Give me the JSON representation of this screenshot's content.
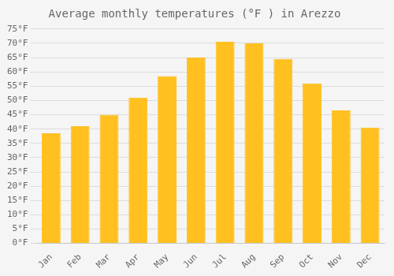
{
  "chart_data": {
    "type": "bar",
    "title": "Average monthly temperatures (°F ) in Arezzo",
    "categories": [
      "Jan",
      "Feb",
      "Mar",
      "Apr",
      "May",
      "Jun",
      "Jul",
      "Aug",
      "Sep",
      "Oct",
      "Nov",
      "Dec"
    ],
    "values": [
      38.5,
      41.0,
      45.0,
      51.0,
      58.5,
      65.0,
      70.5,
      70.0,
      64.5,
      56.0,
      46.5,
      40.5
    ],
    "color": "#FFC020",
    "ylim": [
      0,
      75
    ],
    "yticks": [
      {
        "value": 0,
        "label": "0°F"
      },
      {
        "value": 5,
        "label": "5°F"
      },
      {
        "value": 10,
        "label": "10°F"
      },
      {
        "value": 15,
        "label": "15°F"
      },
      {
        "value": 20,
        "label": "20°F"
      },
      {
        "value": 25,
        "label": "25°F"
      },
      {
        "value": 30,
        "label": "30°F"
      },
      {
        "value": 35,
        "label": "35°F"
      },
      {
        "value": 40,
        "label": "40°F"
      },
      {
        "value": 45,
        "label": "45°F"
      },
      {
        "value": 50,
        "label": "50°F"
      },
      {
        "value": 55,
        "label": "55°F"
      },
      {
        "value": 60,
        "label": "60°F"
      },
      {
        "value": 65,
        "label": "65°F"
      },
      {
        "value": 70,
        "label": "70°F"
      },
      {
        "value": 75,
        "label": "75°F"
      }
    ],
    "grid": true
  }
}
